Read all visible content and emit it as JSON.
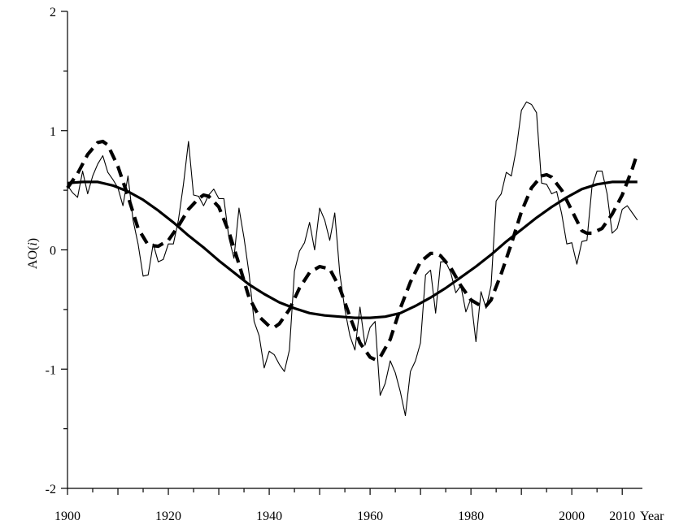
{
  "chart_data": {
    "type": "line",
    "xlabel": "Year",
    "ylabel": "AO(i)",
    "xlim": [
      1900,
      2014
    ],
    "ylim": [
      -2,
      2
    ],
    "x_ticks": [
      1900,
      1920,
      1940,
      1960,
      1980,
      2000,
      2010
    ],
    "y_ticks": [
      2,
      1,
      0,
      -1,
      -2
    ],
    "series": [
      {
        "style": "thin-solid",
        "x": [
          1900,
          1901,
          1902,
          1903,
          1904,
          1905,
          1906,
          1907,
          1908,
          1909,
          1910,
          1911,
          1912,
          1913,
          1914,
          1915,
          1916,
          1917,
          1918,
          1919,
          1920,
          1921,
          1922,
          1923,
          1924,
          1925,
          1926,
          1927,
          1928,
          1929,
          1930,
          1931,
          1932,
          1933,
          1934,
          1935,
          1936,
          1937,
          1938,
          1939,
          1940,
          1941,
          1942,
          1943,
          1944,
          1945,
          1946,
          1947,
          1948,
          1949,
          1950,
          1951,
          1952,
          1953,
          1954,
          1955,
          1956,
          1957,
          1958,
          1959,
          1960,
          1961,
          1962,
          1963,
          1964,
          1965,
          1966,
          1967,
          1968,
          1969,
          1970,
          1971,
          1972,
          1973,
          1974,
          1975,
          1976,
          1977,
          1978,
          1979,
          1980,
          1981,
          1982,
          1983,
          1984,
          1985,
          1986,
          1987,
          1988,
          1989,
          1990,
          1991,
          1992,
          1993,
          1994,
          1995,
          1996,
          1997,
          1998,
          1999,
          2000,
          2001,
          2002,
          2003,
          2004,
          2005,
          2006,
          2007,
          2008,
          2009,
          2010,
          2011,
          2012,
          2013
        ],
        "y": [
          0.54,
          0.48,
          0.44,
          0.66,
          0.47,
          0.62,
          0.72,
          0.79,
          0.65,
          0.59,
          0.52,
          0.37,
          0.62,
          0.25,
          0.05,
          -0.22,
          -0.21,
          0.05,
          -0.1,
          -0.08,
          0.05,
          0.05,
          0.25,
          0.55,
          0.91,
          0.46,
          0.45,
          0.37,
          0.46,
          0.51,
          0.43,
          0.43,
          0.1,
          -0.07,
          0.35,
          0.1,
          -0.2,
          -0.6,
          -0.72,
          -0.99,
          -0.85,
          -0.88,
          -0.96,
          -1.02,
          -0.84,
          -0.18,
          -0.01,
          0.06,
          0.23,
          0.0,
          0.35,
          0.25,
          0.08,
          0.31,
          -0.2,
          -0.5,
          -0.72,
          -0.84,
          -0.48,
          -0.8,
          -0.65,
          -0.6,
          -1.22,
          -1.12,
          -0.93,
          -1.03,
          -1.19,
          -1.39,
          -1.02,
          -0.93,
          -0.78,
          -0.21,
          -0.17,
          -0.53,
          -0.1,
          -0.1,
          -0.19,
          -0.36,
          -0.3,
          -0.52,
          -0.41,
          -0.77,
          -0.35,
          -0.49,
          -0.3,
          0.41,
          0.47,
          0.65,
          0.62,
          0.85,
          1.17,
          1.24,
          1.22,
          1.15,
          0.56,
          0.55,
          0.47,
          0.49,
          0.3,
          0.05,
          0.06,
          -0.12,
          0.07,
          0.08,
          0.53,
          0.66,
          0.66,
          0.47,
          0.14,
          0.18,
          0.34,
          0.37,
          0.31,
          0.25
        ]
      },
      {
        "style": "thick-dashed",
        "x": [
          1900,
          1902,
          1904,
          1906,
          1907,
          1908,
          1910,
          1912,
          1914,
          1916,
          1918,
          1920,
          1922,
          1924,
          1926,
          1927,
          1928,
          1930,
          1932,
          1934,
          1936,
          1938,
          1940,
          1941,
          1942,
          1944,
          1946,
          1948,
          1950,
          1952,
          1954,
          1956,
          1958,
          1960,
          1961,
          1962,
          1964,
          1966,
          1968,
          1970,
          1972,
          1973,
          1974,
          1976,
          1978,
          1980,
          1982,
          1983,
          1984,
          1986,
          1988,
          1990,
          1992,
          1994,
          1995,
          1996,
          1998,
          2000,
          2002,
          2003,
          2004,
          2006,
          2008,
          2010,
          2012,
          2013
        ],
        "y": [
          0.52,
          0.64,
          0.8,
          0.9,
          0.91,
          0.88,
          0.7,
          0.45,
          0.18,
          0.04,
          0.03,
          0.08,
          0.2,
          0.34,
          0.43,
          0.46,
          0.45,
          0.36,
          0.15,
          -0.12,
          -0.4,
          -0.56,
          -0.64,
          -0.65,
          -0.62,
          -0.5,
          -0.32,
          -0.19,
          -0.14,
          -0.16,
          -0.32,
          -0.56,
          -0.78,
          -0.9,
          -0.92,
          -0.9,
          -0.75,
          -0.49,
          -0.27,
          -0.1,
          -0.03,
          -0.03,
          -0.05,
          -0.15,
          -0.3,
          -0.42,
          -0.47,
          -0.47,
          -0.42,
          -0.2,
          0.05,
          0.32,
          0.52,
          0.62,
          0.63,
          0.61,
          0.5,
          0.33,
          0.16,
          0.14,
          0.14,
          0.18,
          0.3,
          0.46,
          0.68,
          0.81
        ]
      },
      {
        "style": "thick-solid",
        "x": [
          1900,
          1903,
          1906,
          1909,
          1912,
          1915,
          1918,
          1921,
          1924,
          1927,
          1930,
          1933,
          1936,
          1939,
          1942,
          1945,
          1948,
          1951,
          1954,
          1957,
          1960,
          1963,
          1966,
          1969,
          1972,
          1975,
          1978,
          1981,
          1984,
          1987,
          1990,
          1993,
          1996,
          1999,
          2002,
          2005,
          2008,
          2011,
          2013
        ],
        "y": [
          0.56,
          0.57,
          0.57,
          0.54,
          0.49,
          0.42,
          0.33,
          0.23,
          0.12,
          0.02,
          -0.09,
          -0.19,
          -0.29,
          -0.37,
          -0.44,
          -0.49,
          -0.53,
          -0.55,
          -0.56,
          -0.57,
          -0.57,
          -0.56,
          -0.53,
          -0.47,
          -0.4,
          -0.32,
          -0.23,
          -0.14,
          -0.04,
          0.07,
          0.17,
          0.27,
          0.36,
          0.44,
          0.51,
          0.55,
          0.57,
          0.57,
          0.57
        ]
      }
    ]
  }
}
